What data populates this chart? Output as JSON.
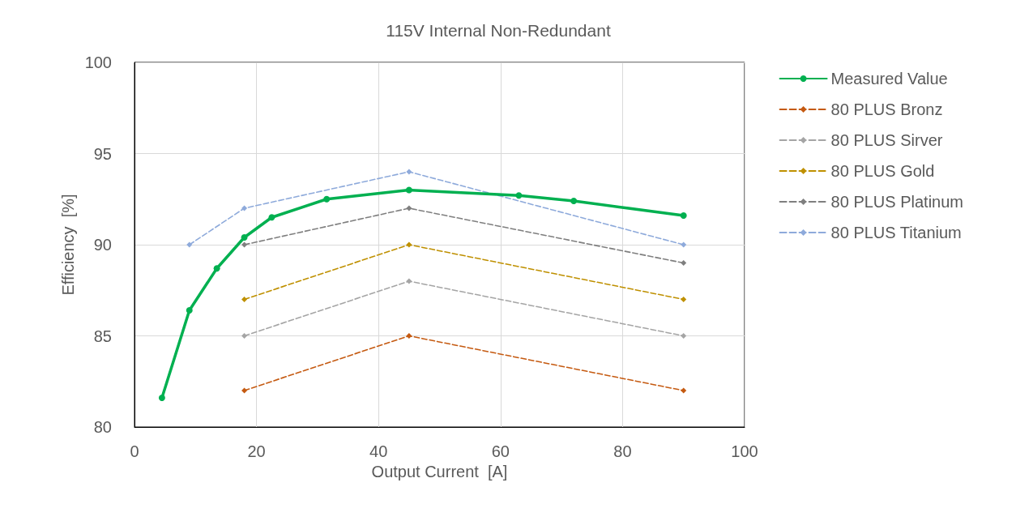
{
  "chart_data": {
    "type": "line",
    "title": "115V Internal Non-Redundant",
    "xlabel": "Output Current  [A]",
    "ylabel": "Efficiency  [%]",
    "xlim": [
      0,
      100
    ],
    "xticks": [
      0,
      20,
      40,
      60,
      80,
      100
    ],
    "ylim": [
      80,
      100
    ],
    "yticks": [
      80,
      85,
      90,
      95,
      100
    ],
    "grid": true,
    "legend": "right",
    "series": [
      {
        "name": "Measured Value",
        "color": "#00b050",
        "marker": "circle",
        "line_style": "solid",
        "x": [
          4.5,
          9,
          13.5,
          18,
          22.5,
          31.5,
          45,
          63,
          72,
          90
        ],
        "values": [
          81.6,
          86.4,
          88.7,
          90.4,
          91.5,
          92.5,
          93.0,
          92.7,
          92.4,
          91.6
        ]
      },
      {
        "name": "80 PLUS Bronz",
        "color": "#c55a11",
        "marker": "diamond",
        "line_style": "dashed",
        "x": [
          18,
          45,
          90
        ],
        "values": [
          82,
          85,
          82
        ]
      },
      {
        "name": "80 PLUS Sirver",
        "color": "#a5a5a5",
        "marker": "diamond",
        "line_style": "dashed",
        "x": [
          18,
          45,
          90
        ],
        "values": [
          85,
          88,
          85
        ]
      },
      {
        "name": "80 PLUS Gold",
        "color": "#bf9000",
        "marker": "diamond",
        "line_style": "dashed",
        "x": [
          18,
          45,
          90
        ],
        "values": [
          87,
          90,
          87
        ]
      },
      {
        "name": "80 PLUS Platinum",
        "color": "#7f7f7f",
        "marker": "diamond",
        "line_style": "dashed",
        "x": [
          18,
          45,
          90
        ],
        "values": [
          90,
          92,
          89
        ]
      },
      {
        "name": "80 PLUS Titanium",
        "color": "#8eaadb",
        "marker": "diamond",
        "line_style": "dashed",
        "x": [
          9,
          18,
          45,
          90
        ],
        "values": [
          90,
          92,
          94,
          90
        ]
      }
    ]
  }
}
